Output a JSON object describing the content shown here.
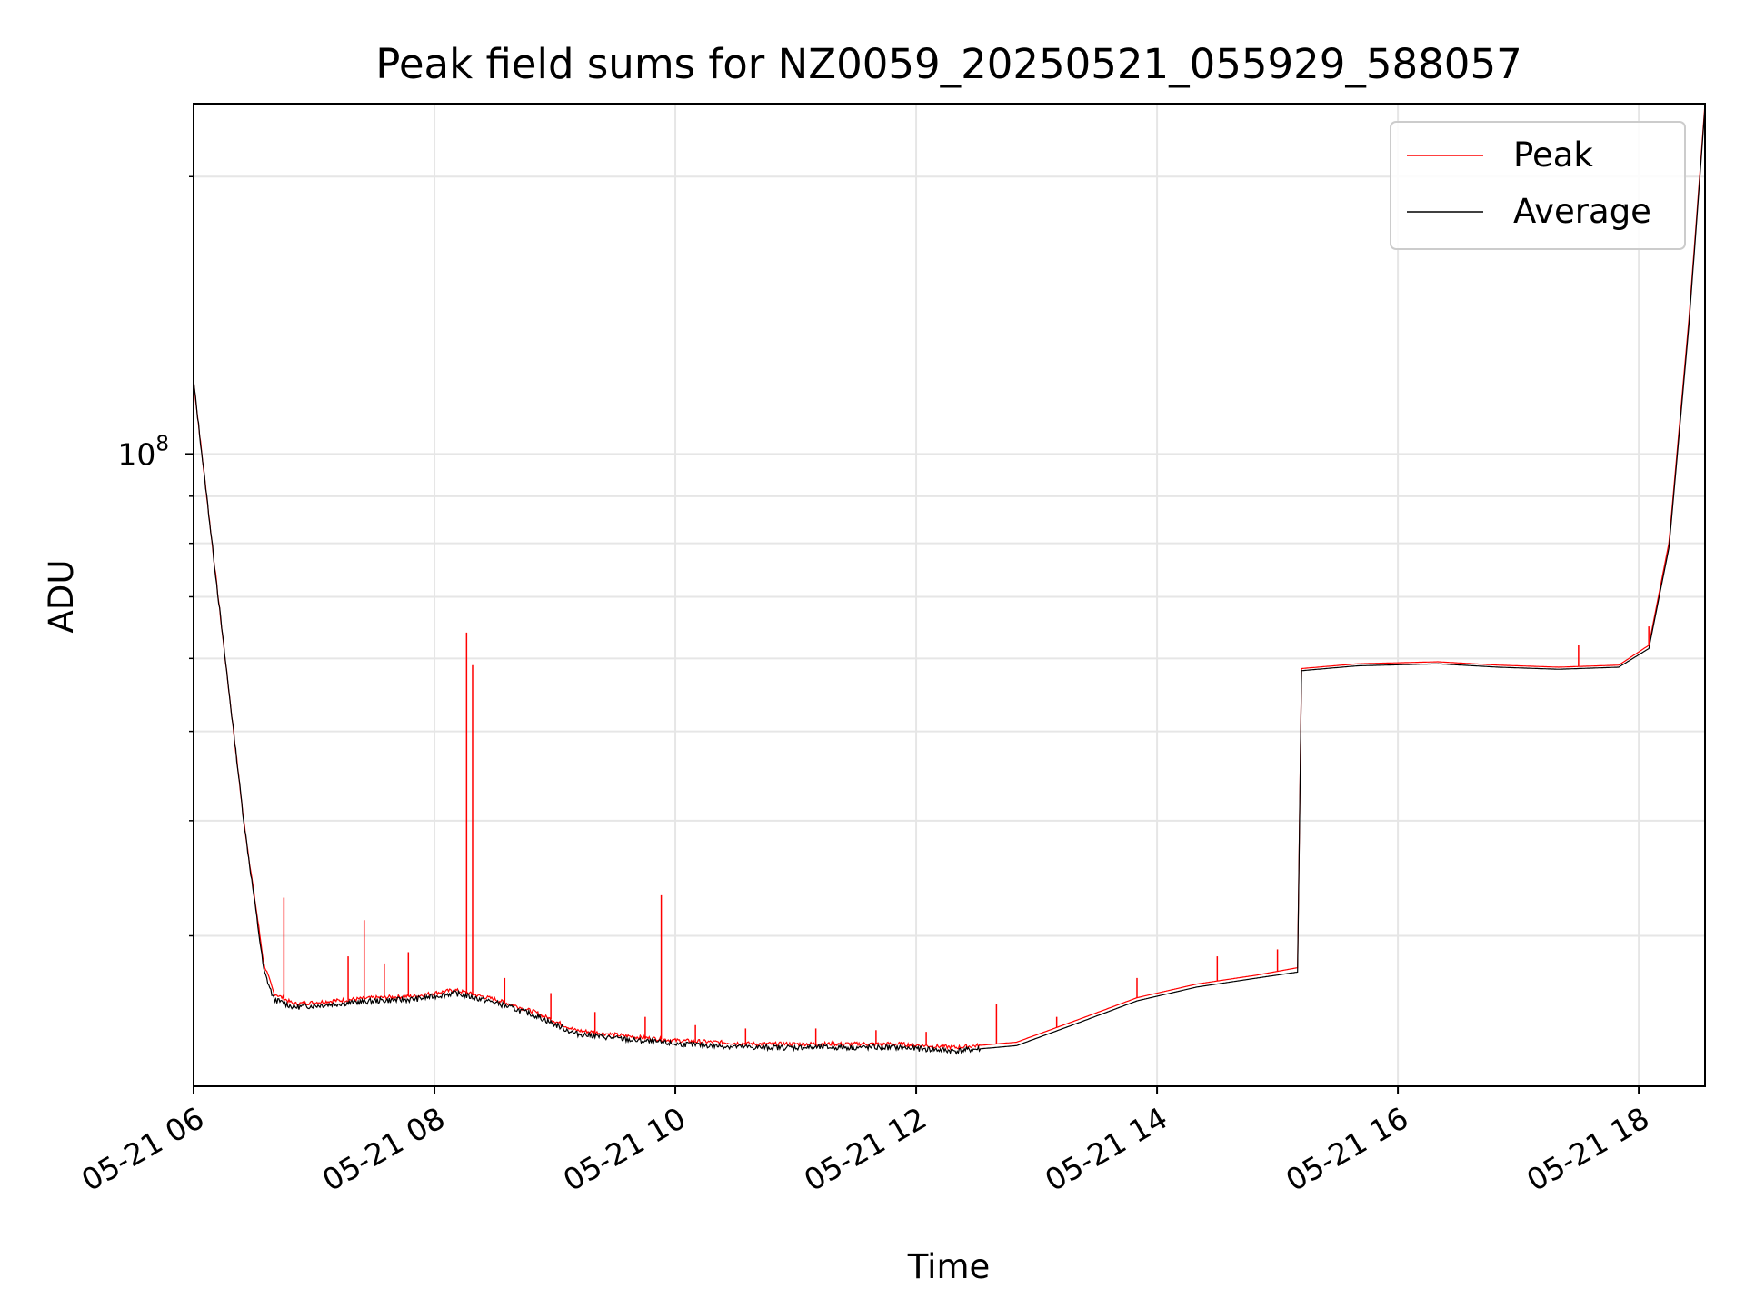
{
  "chart_data": {
    "type": "line",
    "title": "Peak field sums for NZ0059_20250521_055929_588057",
    "xlabel": "Time",
    "ylabel": "ADU",
    "y_scale": "log",
    "ylim": [
      20600000,
      240000000
    ],
    "xlim": [
      "05-21 06:00",
      "05-21 18:33"
    ],
    "x_ticks": [
      "05-21 06",
      "05-21 08",
      "05-21 10",
      "05-21 12",
      "05-21 14",
      "05-21 16",
      "05-21 18"
    ],
    "y_tick_label_base": "10",
    "y_tick_label_exp": "8",
    "grid": true,
    "legend": "upper right",
    "series": [
      {
        "name": "Peak",
        "color": "#ff0000",
        "points": [
          [
            "05-21 06:00",
            120000000
          ],
          [
            "05-21 06:15",
            62000000
          ],
          [
            "05-21 06:25",
            40000000
          ],
          [
            "05-21 06:35",
            28000000
          ],
          [
            "05-21 06:40",
            26000000
          ],
          [
            "05-21 06:50",
            25300000
          ],
          [
            "05-21 07:10",
            25500000
          ],
          [
            "05-21 07:30",
            25700000
          ],
          [
            "05-21 07:50",
            25800000
          ],
          [
            "05-21 08:10",
            26200000
          ],
          [
            "05-21 08:30",
            25600000
          ],
          [
            "05-21 08:50",
            24800000
          ],
          [
            "05-21 09:10",
            23700000
          ],
          [
            "05-21 09:40",
            23300000
          ],
          [
            "05-21 10:00",
            23100000
          ],
          [
            "05-21 10:40",
            22900000
          ],
          [
            "05-21 11:20",
            22900000
          ],
          [
            "05-21 11:50",
            22900000
          ],
          [
            "05-21 12:20",
            22700000
          ],
          [
            "05-21 12:50",
            23000000
          ],
          [
            "05-21 13:20",
            24300000
          ],
          [
            "05-21 13:50",
            25700000
          ],
          [
            "05-21 14:20",
            26600000
          ],
          [
            "05-21 14:50",
            27200000
          ],
          [
            "05-21 15:10",
            27700000
          ],
          [
            "05-21 15:12",
            58500000
          ],
          [
            "05-21 15:40",
            59200000
          ],
          [
            "05-21 16:20",
            59500000
          ],
          [
            "05-21 16:50",
            59000000
          ],
          [
            "05-21 17:20",
            58700000
          ],
          [
            "05-21 17:50",
            59000000
          ],
          [
            "05-21 18:05",
            62000000
          ],
          [
            "05-21 18:15",
            80000000
          ],
          [
            "05-21 18:25",
            140000000
          ],
          [
            "05-21 18:33",
            240000000
          ]
        ],
        "spikes": [
          [
            "05-21 06:45",
            33000000
          ],
          [
            "05-21 07:17",
            28500000
          ],
          [
            "05-21 07:25",
            31200000
          ],
          [
            "05-21 07:35",
            28000000
          ],
          [
            "05-21 07:47",
            28800000
          ],
          [
            "05-21 08:16",
            64000000
          ],
          [
            "05-21 08:19",
            59000000
          ],
          [
            "05-21 08:35",
            27000000
          ],
          [
            "05-21 08:58",
            26000000
          ],
          [
            "05-21 09:20",
            24800000
          ],
          [
            "05-21 09:45",
            24500000
          ],
          [
            "05-21 09:53",
            33200000
          ],
          [
            "05-21 10:10",
            24000000
          ],
          [
            "05-21 10:35",
            23800000
          ],
          [
            "05-21 11:10",
            23800000
          ],
          [
            "05-21 11:40",
            23700000
          ],
          [
            "05-21 12:05",
            23600000
          ],
          [
            "05-21 12:40",
            25300000
          ],
          [
            "05-21 13:10",
            24500000
          ],
          [
            "05-21 13:50",
            27000000
          ],
          [
            "05-21 14:30",
            28500000
          ],
          [
            "05-21 15:00",
            29000000
          ],
          [
            "05-21 17:30",
            62000000
          ],
          [
            "05-21 18:05",
            65000000
          ]
        ]
      },
      {
        "name": "Average",
        "color": "#000000",
        "points": [
          [
            "05-21 06:00",
            120000000
          ],
          [
            "05-21 06:15",
            62000000
          ],
          [
            "05-21 06:25",
            40000000
          ],
          [
            "05-21 06:35",
            27500000
          ],
          [
            "05-21 06:40",
            25600000
          ],
          [
            "05-21 06:50",
            25100000
          ],
          [
            "05-21 07:10",
            25300000
          ],
          [
            "05-21 07:30",
            25500000
          ],
          [
            "05-21 07:50",
            25600000
          ],
          [
            "05-21 08:10",
            26000000
          ],
          [
            "05-21 08:30",
            25400000
          ],
          [
            "05-21 08:50",
            24600000
          ],
          [
            "05-21 09:10",
            23500000
          ],
          [
            "05-21 09:40",
            23100000
          ],
          [
            "05-21 10:00",
            22900000
          ],
          [
            "05-21 10:40",
            22700000
          ],
          [
            "05-21 11:20",
            22700000
          ],
          [
            "05-21 11:50",
            22700000
          ],
          [
            "05-21 12:20",
            22500000
          ],
          [
            "05-21 12:50",
            22800000
          ],
          [
            "05-21 13:20",
            24100000
          ],
          [
            "05-21 13:50",
            25500000
          ],
          [
            "05-21 14:20",
            26400000
          ],
          [
            "05-21 14:50",
            27000000
          ],
          [
            "05-21 15:10",
            27400000
          ],
          [
            "05-21 15:12",
            58200000
          ],
          [
            "05-21 15:40",
            58900000
          ],
          [
            "05-21 16:20",
            59200000
          ],
          [
            "05-21 16:50",
            58700000
          ],
          [
            "05-21 17:20",
            58400000
          ],
          [
            "05-21 17:50",
            58700000
          ],
          [
            "05-21 18:05",
            61500000
          ],
          [
            "05-21 18:15",
            79000000
          ],
          [
            "05-21 18:25",
            138000000
          ],
          [
            "05-21 18:33",
            238000000
          ]
        ]
      }
    ]
  }
}
